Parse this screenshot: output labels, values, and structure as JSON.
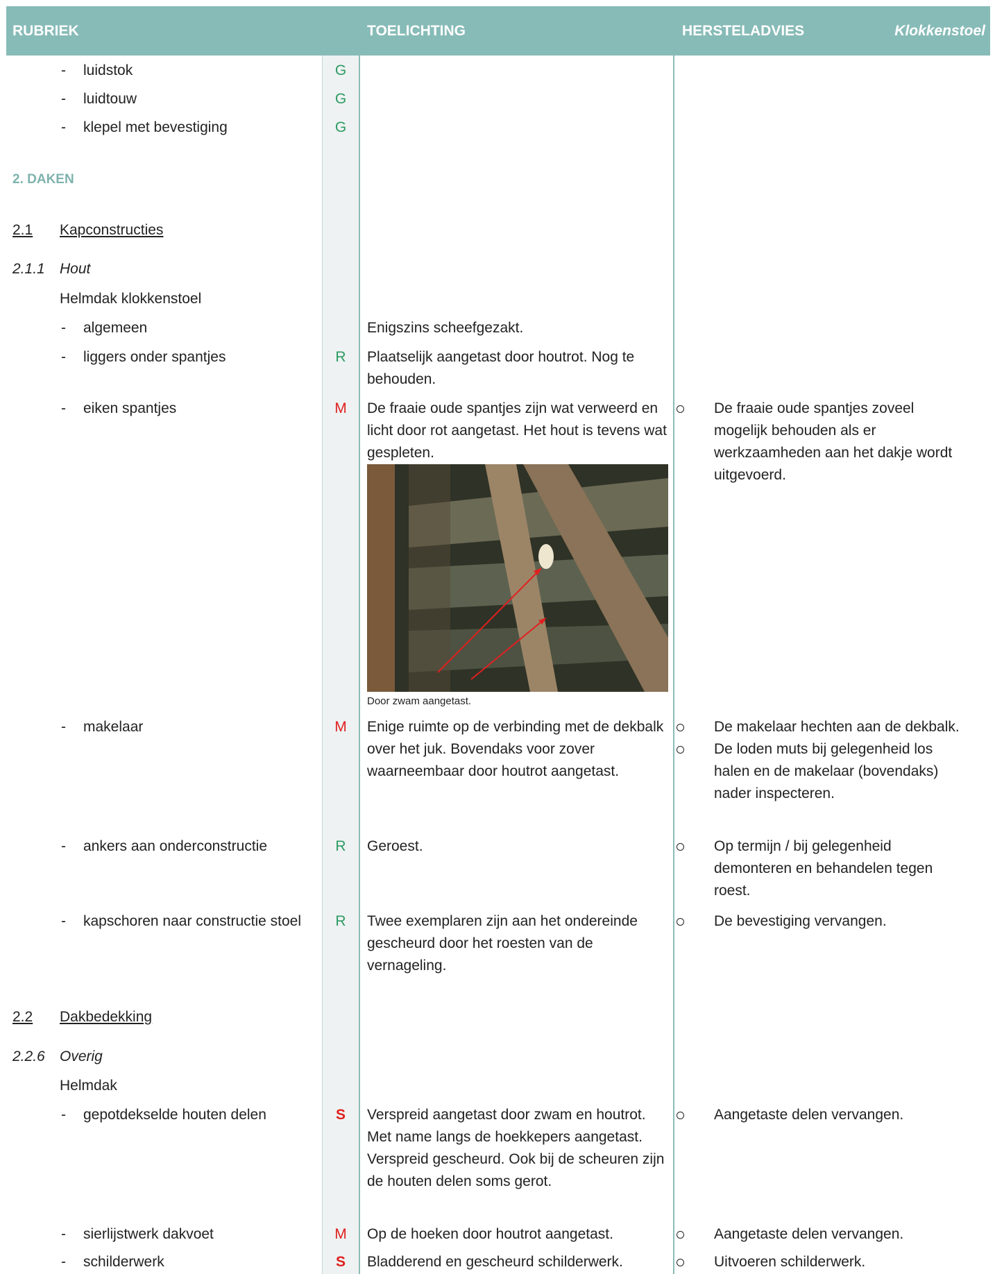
{
  "header": {
    "rubriek": "RUBRIEK",
    "toelichting": "TOELICHTING",
    "hersteladvies": "HERSTELADVIES",
    "object": "Klokkenstoel"
  },
  "rows": [
    {
      "item": "luidstok",
      "rating": "G"
    },
    {
      "item": "luidtouw",
      "rating": "G"
    },
    {
      "item": "klepel met bevestiging",
      "rating": "G"
    },
    {
      "heading": "2. DAKEN"
    },
    {
      "section_number": "2.1",
      "section": "Kapconstructies"
    },
    {
      "subsection_number": "2.1.1",
      "subsection": "Hout"
    },
    {
      "group": "Helmdak klokkenstoel"
    },
    {
      "item": "algemeen",
      "toelichting": "Enigszins scheefgezakt."
    },
    {
      "item": "liggers onder spantjes",
      "rating": "R",
      "toelichting": "Plaatselijk aangetast door houtrot. Nog te behouden."
    },
    {
      "item": "eiken spantjes",
      "rating": "M",
      "toelichting": "De fraaie oude spantjes zijn wat verweerd en licht door rot aangetast. Het hout is tevens wat gespleten.",
      "photo_caption": "Door zwam aangetast.",
      "advies": [
        "De fraaie oude spantjes zoveel mogelijk behouden als er werkzaamheden aan het dakje wordt uitgevoerd."
      ]
    },
    {
      "item": "makelaar",
      "rating": "M",
      "toelichting": "Enige ruimte op de verbinding met de dekbalk over het juk. Bovendaks voor zover waarneembaar door houtrot aangetast.",
      "advies": [
        "De makelaar hechten aan de dekbalk.",
        "De loden muts bij gelegenheid los halen en de makelaar (bovendaks) nader inspecteren."
      ]
    },
    {
      "item": "ankers aan onderconstructie",
      "rating": "R",
      "toelichting": "Geroest.",
      "advies": [
        "Op termijn / bij gelegenheid demonteren en behandelen tegen roest."
      ]
    },
    {
      "item": "kapschoren naar constructie stoel",
      "rating": "R",
      "toelichting": "Twee exemplaren zijn aan het ondereinde gescheurd door het roesten van de vernageling.",
      "advies": [
        "De bevestiging vervangen."
      ]
    },
    {
      "section_number": "2.2",
      "section": "Dakbedekking"
    },
    {
      "subsection_number": "2.2.6",
      "subsection": "Overig"
    },
    {
      "group": "Helmdak"
    },
    {
      "item": "gepotdekselde houten delen",
      "rating": "S",
      "toelichting": "Verspreid aangetast door zwam en houtrot. Met name langs de hoekkepers aangetast. Verspreid gescheurd. Ook bij de scheuren zijn de houten delen soms gerot.",
      "advies": [
        "Aangetaste delen vervangen."
      ]
    },
    {
      "item": "sierlijstwerk dakvoet",
      "rating": "M",
      "toelichting": "Op de hoeken door houtrot aangetast.",
      "advies": [
        "Aangetaste delen vervangen."
      ]
    },
    {
      "item": "schilderwerk",
      "rating": "S",
      "toelichting": "Bladderend en gescheurd schilderwerk.",
      "advies": [
        "Uitvoeren schilderwerk."
      ]
    }
  ]
}
